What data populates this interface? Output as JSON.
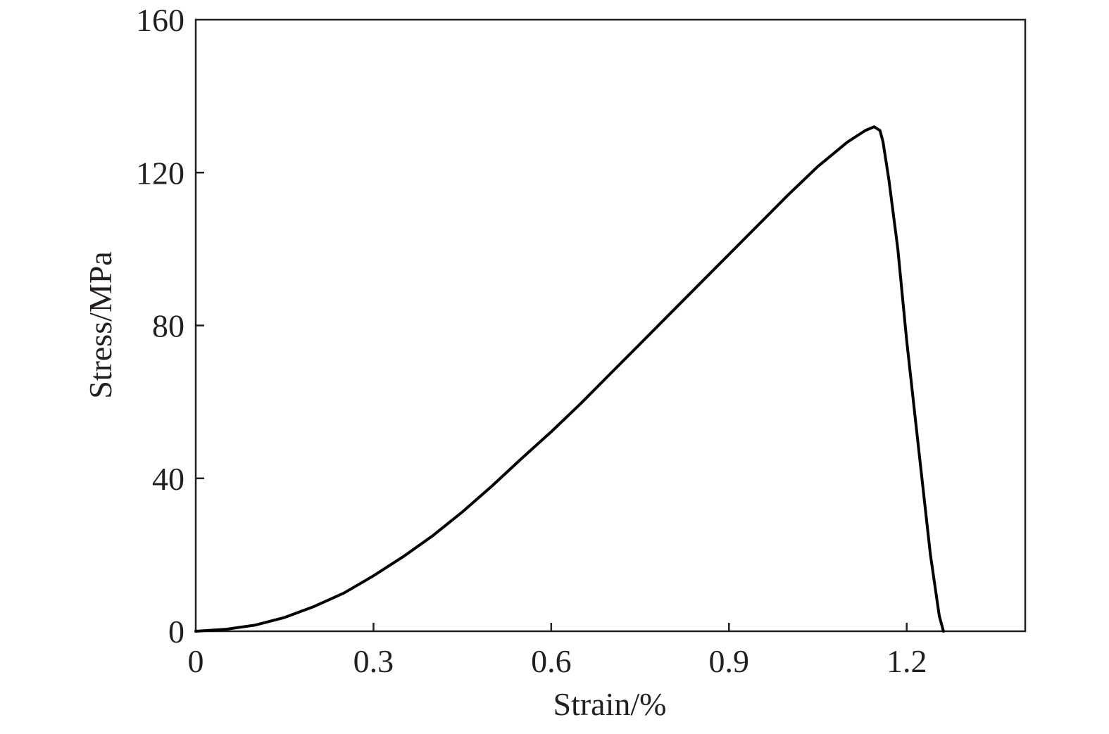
{
  "chart_data": {
    "type": "line",
    "title": "",
    "xlabel": "Strain/%",
    "ylabel": "Stress/MPa",
    "xlim": [
      0,
      1.4
    ],
    "ylim": [
      0,
      160
    ],
    "xticks": [
      0,
      0.3,
      0.6,
      0.9,
      1.2
    ],
    "xtick_labels": [
      "0",
      "0.3",
      "0.6",
      "0.9",
      "1.2"
    ],
    "yticks": [
      0,
      40,
      80,
      120,
      160
    ],
    "ytick_labels": [
      "0",
      "40",
      "80",
      "120",
      "160"
    ],
    "grid": false,
    "legend": "none",
    "colors": {
      "line": "#000000",
      "axes": "#231f20"
    },
    "series": [
      {
        "x": [
          0,
          0.05,
          0.1,
          0.15,
          0.2,
          0.25,
          0.3,
          0.35,
          0.4,
          0.45,
          0.5,
          0.55,
          0.6,
          0.65,
          0.7,
          0.75,
          0.8,
          0.85,
          0.9,
          0.95,
          1.0,
          1.05,
          1.1,
          1.13,
          1.145,
          1.155,
          1.16,
          1.17,
          1.185,
          1.2,
          1.22,
          1.24,
          1.255,
          1.262
        ],
        "y": [
          0,
          0.5,
          1.6,
          3.6,
          6.5,
          10.0,
          14.5,
          19.5,
          25.0,
          31.2,
          38.0,
          45.2,
          52.2,
          59.6,
          67.4,
          75.2,
          83.0,
          90.8,
          98.6,
          106.4,
          114.2,
          121.6,
          128.0,
          131.0,
          132.0,
          131.0,
          128.0,
          118.0,
          100.0,
          76.0,
          48.0,
          20.0,
          4.0,
          0
        ]
      }
    ]
  }
}
